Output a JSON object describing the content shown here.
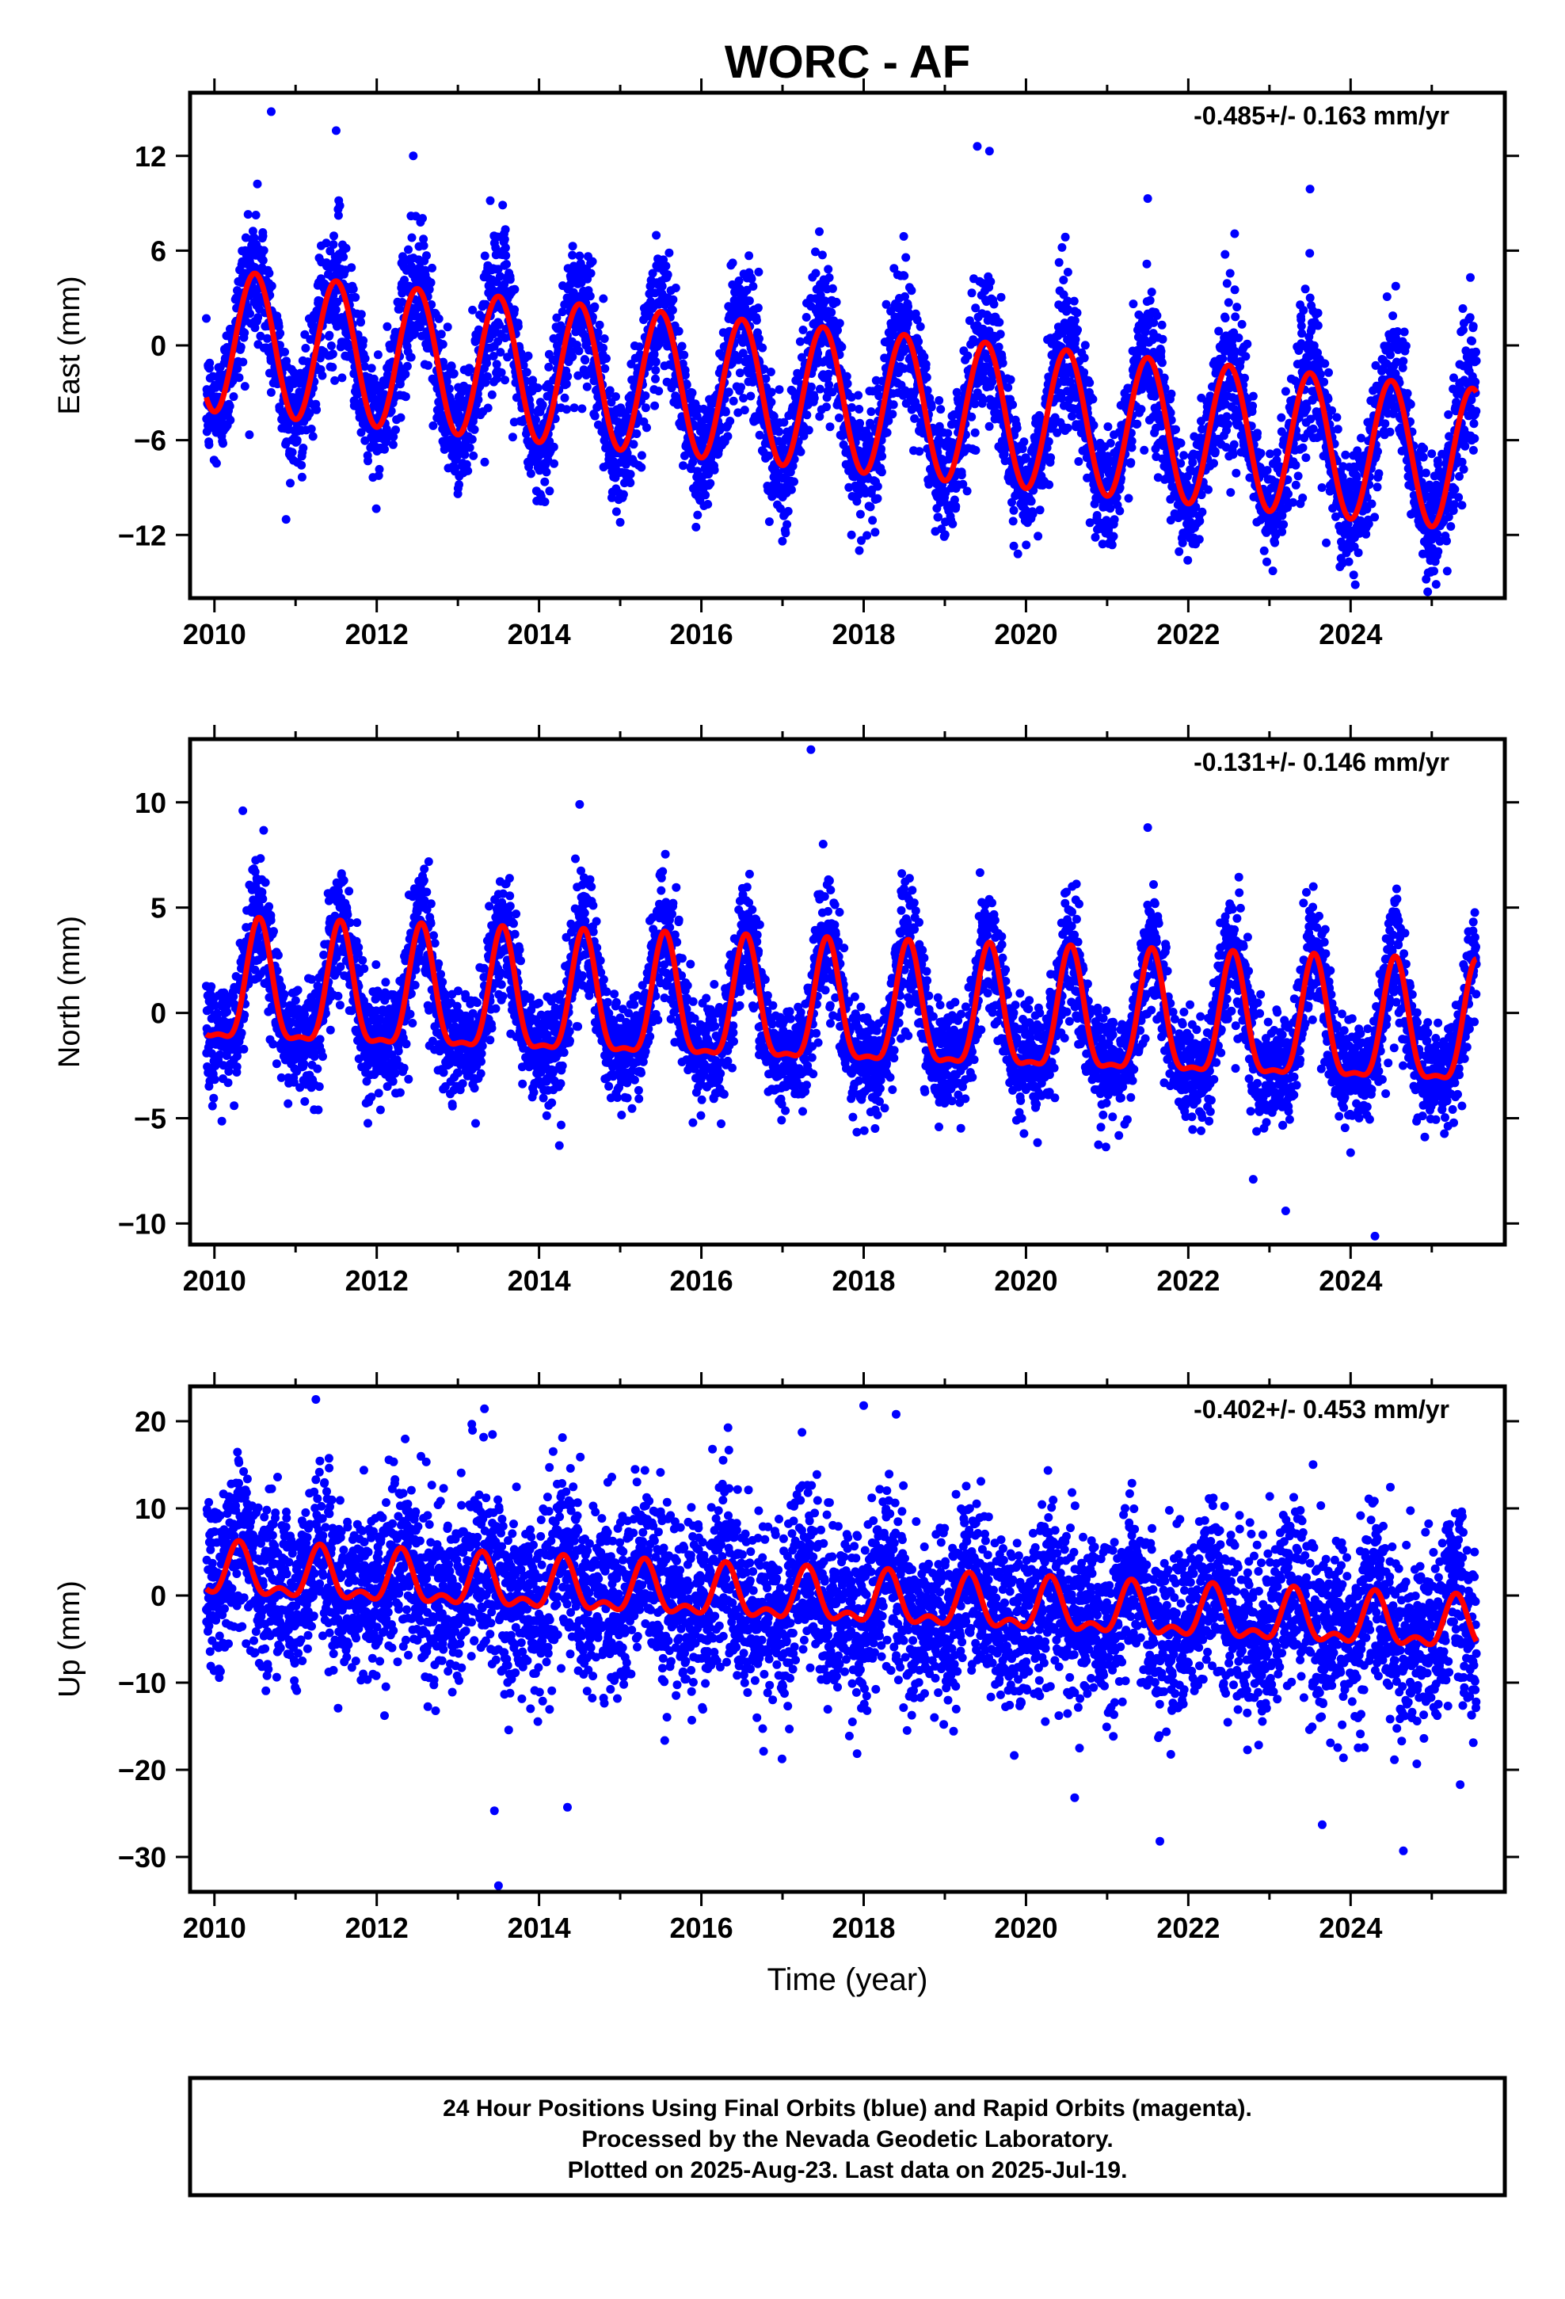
{
  "title": "WORC - AF",
  "xlabel": "Time (year)",
  "footer": {
    "lines": [
      "24 Hour Positions Using Final Orbits (blue) and Rapid Orbits (magenta).",
      "Processed by the Nevada Geodetic Laboratory.",
      "Plotted on 2025-Aug-23. Last data on 2025-Jul-19."
    ]
  },
  "colors": {
    "final_orbits": "#0000ff",
    "model": "#ff0000",
    "axes": "#000000"
  },
  "chart_data": [
    {
      "type": "scatter",
      "ylabel": "East (mm)",
      "rate_label": "-0.485+/- 0.163 mm/yr",
      "xlim": [
        2009.7,
        2025.9
      ],
      "ylim": [
        -16,
        16
      ],
      "xticks": [
        2010,
        2012,
        2014,
        2016,
        2018,
        2020,
        2022,
        2024
      ],
      "yticks": [
        -12,
        -6,
        0,
        6,
        12
      ],
      "model": {
        "offset": 0.3,
        "rate": -0.485,
        "annual_amp": 4.5,
        "peak_phase": 0.5,
        "semiannual_amp": 0.0,
        "semiannual_phase": 0.0
      },
      "scatter": {
        "residual_sd": 1.8,
        "amp_jitter": 2.0,
        "start": 2009.9,
        "end": 2025.55
      },
      "outliers": [
        {
          "x": 2010.7,
          "y": 14.8
        },
        {
          "x": 2011.5,
          "y": 13.6
        },
        {
          "x": 2012.45,
          "y": 12.0
        },
        {
          "x": 2019.4,
          "y": 12.6
        },
        {
          "x": 2019.55,
          "y": 12.3
        },
        {
          "x": 2021.5,
          "y": 9.3
        },
        {
          "x": 2023.5,
          "y": 9.9
        },
        {
          "x": 2015.0,
          "y": -11.2
        },
        {
          "x": 2017.85,
          "y": -12.0
        },
        {
          "x": 2019.85,
          "y": -12.7
        },
        {
          "x": 2019.9,
          "y": -13.2
        },
        {
          "x": 2023.7,
          "y": -12.5
        },
        {
          "x": 2023.9,
          "y": -13.8
        },
        {
          "x": 2024.95,
          "y": -15.6
        }
      ]
    },
    {
      "type": "scatter",
      "ylabel": "North (mm)",
      "rate_label": "-0.131+/- 0.146 mm/yr",
      "xlim": [
        2009.7,
        2025.9
      ],
      "ylim": [
        -11,
        13
      ],
      "xticks": [
        2010,
        2012,
        2014,
        2016,
        2018,
        2020,
        2022,
        2024
      ],
      "yticks": [
        -10,
        -5,
        0,
        5,
        10
      ],
      "model": {
        "offset": 0.9,
        "rate": -0.131,
        "annual_amp": 2.8,
        "peak_phase": 0.55,
        "semiannual_amp": 0.9,
        "semiannual_phase": 0.55
      },
      "scatter": {
        "residual_sd": 1.2,
        "amp_jitter": 1.0,
        "start": 2009.9,
        "end": 2025.55
      },
      "outliers": [
        {
          "x": 2010.35,
          "y": 9.6
        },
        {
          "x": 2014.5,
          "y": 9.9
        },
        {
          "x": 2017.35,
          "y": 12.5
        },
        {
          "x": 2021.5,
          "y": 8.8
        },
        {
          "x": 2022.8,
          "y": -7.9
        },
        {
          "x": 2023.2,
          "y": -9.4
        },
        {
          "x": 2024.3,
          "y": -10.6
        },
        {
          "x": 2014.25,
          "y": -6.3
        }
      ]
    },
    {
      "type": "scatter",
      "ylabel": "Up (mm)",
      "rate_label": "-0.402+/- 0.453 mm/yr",
      "xlim": [
        2009.7,
        2025.9
      ],
      "ylim": [
        -34,
        24
      ],
      "xticks": [
        2010,
        2012,
        2014,
        2016,
        2018,
        2020,
        2022,
        2024
      ],
      "yticks": [
        -30,
        -20,
        -10,
        0,
        10,
        20
      ],
      "model": {
        "offset": 2.4,
        "rate": -0.402,
        "annual_amp": 2.6,
        "peak_phase": 0.3,
        "semiannual_amp": 1.4,
        "semiannual_phase": 0.3
      },
      "scatter": {
        "residual_sd": 5.0,
        "amp_jitter": 0.0,
        "start": 2009.9,
        "end": 2025.55
      },
      "outliers": [
        {
          "x": 2011.25,
          "y": 22.5
        },
        {
          "x": 2018.0,
          "y": 21.8
        },
        {
          "x": 2018.4,
          "y": 20.8
        },
        {
          "x": 2013.5,
          "y": -33.3
        },
        {
          "x": 2013.45,
          "y": -24.7
        },
        {
          "x": 2014.35,
          "y": -24.3
        },
        {
          "x": 2021.65,
          "y": -28.2
        },
        {
          "x": 2023.65,
          "y": -26.3
        },
        {
          "x": 2024.65,
          "y": -29.3
        },
        {
          "x": 2025.35,
          "y": -21.7
        },
        {
          "x": 2020.6,
          "y": -23.2
        }
      ]
    }
  ]
}
